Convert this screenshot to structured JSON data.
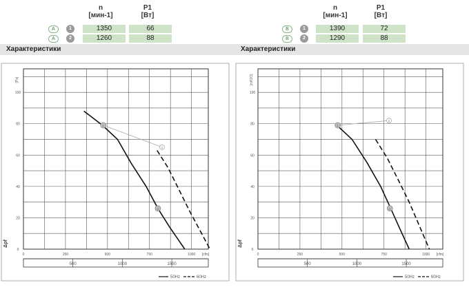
{
  "headers": {
    "speed": "n",
    "speed_unit": "[мин-1]",
    "power": "P1",
    "power_unit": "[Вт]"
  },
  "section_title": "Характеристики",
  "panels": [
    {
      "rows": [
        {
          "curve": "A",
          "index": "1",
          "speed": "1350",
          "power": "66"
        },
        {
          "curve": "A",
          "index": "2",
          "speed": "1260",
          "power": "88"
        }
      ]
    },
    {
      "rows": [
        {
          "curve": "B",
          "index": "1",
          "speed": "1390",
          "power": "72"
        },
        {
          "curve": "B",
          "index": "2",
          "speed": "1290",
          "power": "88"
        }
      ]
    }
  ],
  "chart_data": [
    {
      "type": "line",
      "xlabel": "[cfm]",
      "ylabel": "Δpf",
      "ylabel_unit": "[Pa]",
      "x_ticks": [
        0,
        250,
        500,
        750,
        1000
      ],
      "x_ticks_m3h": [
        500,
        1000,
        1500
      ],
      "y_ticks": [
        0,
        20,
        40,
        60,
        80,
        100
      ],
      "xlim": [
        0,
        1100
      ],
      "ylim": [
        0,
        115
      ],
      "grid": true,
      "legend_labels": [
        "50Hz",
        "60Hz"
      ],
      "series": [
        {
          "name": "50Hz",
          "style": "solid",
          "points": [
            [
              360,
              88
            ],
            [
              470,
              79
            ],
            [
              560,
              70
            ],
            [
              640,
              55
            ],
            [
              730,
              40
            ],
            [
              800,
              26
            ],
            [
              870,
              14
            ],
            [
              960,
              0
            ]
          ]
        },
        {
          "name": "60Hz",
          "style": "dashed",
          "points": [
            [
              795,
              63
            ],
            [
              860,
              52
            ],
            [
              925,
              38
            ],
            [
              990,
              24
            ],
            [
              1060,
              10
            ],
            [
              1110,
              0
            ]
          ]
        }
      ],
      "operating_points": [
        {
          "id": "1",
          "x": 475,
          "y": 79
        },
        {
          "id": "2",
          "x": 800,
          "y": 26
        }
      ],
      "callout_points": [
        {
          "id": "2",
          "x": 825,
          "y": 65
        }
      ]
    },
    {
      "type": "line",
      "xlabel": "[cfm]",
      "ylabel": "Δpf",
      "ylabel_unit": "[inH2O]",
      "x_ticks": [
        0,
        250,
        500,
        750,
        1000
      ],
      "x_ticks_m3h": [
        500,
        1000,
        1500
      ],
      "y_ticks": [
        0,
        20,
        40,
        60,
        80,
        100
      ],
      "xlim": [
        0,
        1100
      ],
      "ylim": [
        0,
        115
      ],
      "grid": true,
      "legend_labels": [
        "50Hz",
        "60Hz"
      ],
      "series": [
        {
          "name": "50Hz",
          "style": "solid",
          "points": [
            [
              470,
              79
            ],
            [
              560,
              70
            ],
            [
              650,
              55
            ],
            [
              730,
              40
            ],
            [
              790,
              26
            ],
            [
              840,
              14
            ],
            [
              900,
              0
            ]
          ]
        },
        {
          "name": "60Hz",
          "style": "dashed",
          "points": [
            [
              700,
              70
            ],
            [
              770,
              58
            ],
            [
              840,
              43
            ],
            [
              900,
              30
            ],
            [
              960,
              15
            ],
            [
              1020,
              0
            ]
          ]
        }
      ],
      "operating_points": [
        {
          "id": "1",
          "x": 475,
          "y": 79
        },
        {
          "id": "2",
          "x": 785,
          "y": 26
        }
      ],
      "callout_points": [
        {
          "id": "2",
          "x": 780,
          "y": 82
        }
      ]
    }
  ]
}
